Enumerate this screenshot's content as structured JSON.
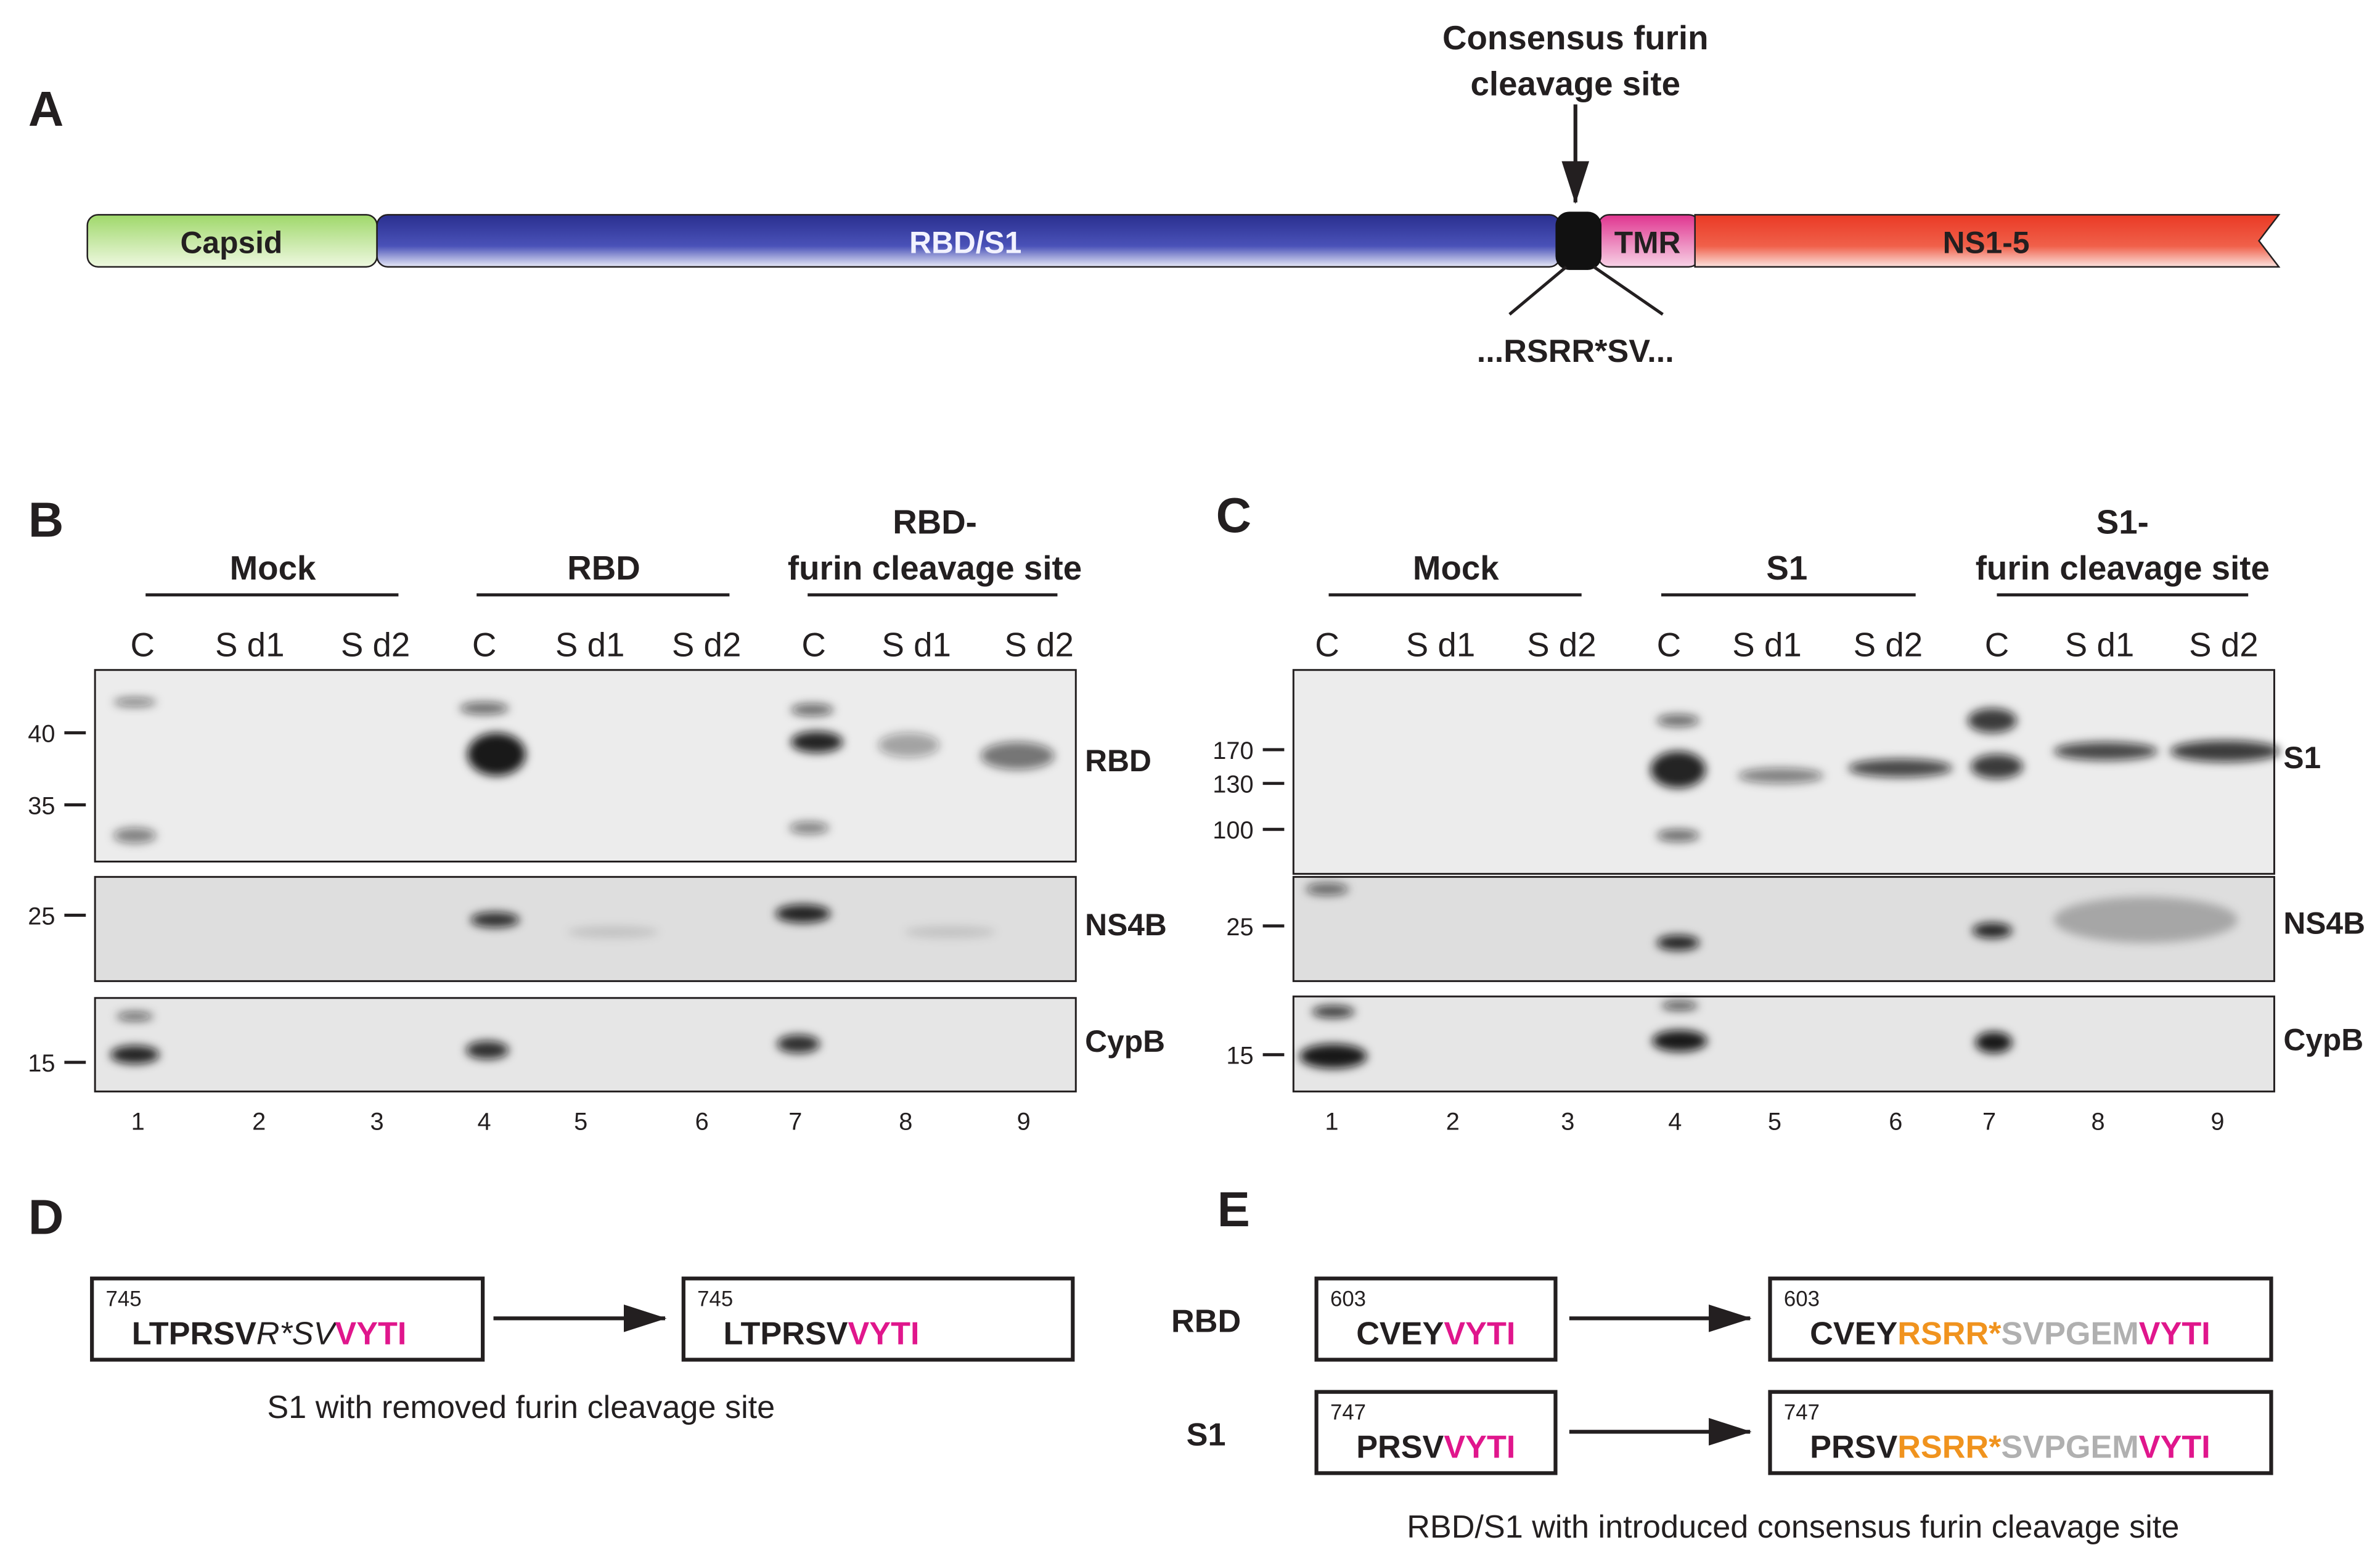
{
  "panel_labels": [
    "A",
    "B",
    "C",
    "D",
    "E"
  ],
  "panel_a": {
    "annotation": [
      "Consensus furin",
      "cleavage site"
    ],
    "domains": [
      "Capsid",
      "RBD/S1",
      "TMR",
      "NS1-5"
    ],
    "sequence": "...RSRR*SV..."
  },
  "panel_b": {
    "groups": [
      [
        "Mock"
      ],
      [
        "RBD"
      ],
      [
        "RBD-",
        "furin cleavage site"
      ]
    ],
    "lanes": [
      "C",
      "S d1",
      "S d2",
      "C",
      "S d1",
      "S d2",
      "C",
      "S d1",
      "S d2"
    ],
    "markers": [
      "40",
      "35",
      "25",
      "15"
    ],
    "blots": [
      "RBD",
      "NS4B",
      "CypB"
    ],
    "lane_numbers": [
      "1",
      "2",
      "3",
      "4",
      "5",
      "6",
      "7",
      "8",
      "9"
    ]
  },
  "panel_c": {
    "groups": [
      [
        "Mock"
      ],
      [
        "S1"
      ],
      [
        "S1-",
        "furin cleavage site"
      ]
    ],
    "lanes": [
      "C",
      "S d1",
      "S d2",
      "C",
      "S d1",
      "S d2",
      "C",
      "S d1",
      "S d2"
    ],
    "markers": [
      "170",
      "130",
      "100",
      "25",
      "15"
    ],
    "blots": [
      "S1",
      "NS4B",
      "CypB"
    ],
    "lane_numbers": [
      "1",
      "2",
      "3",
      "4",
      "5",
      "6",
      "7",
      "8",
      "9"
    ]
  },
  "panel_d": {
    "left": {
      "position": "745",
      "segments": [
        "LTPRSV",
        "R*SV",
        "VYTI"
      ]
    },
    "right": {
      "position": "745",
      "segments": [
        "LTPRSV",
        "VYTI"
      ]
    },
    "caption": "S1 with removed furin cleavage site"
  },
  "panel_e": {
    "rows": [
      {
        "label": "RBD",
        "left": {
          "position": "603",
          "segments": [
            "CVEY",
            "VYTI"
          ]
        },
        "right": {
          "position": "603",
          "segments": [
            "CVEY",
            "RSRR*",
            "SVPGEM",
            "VYTI"
          ]
        }
      },
      {
        "label": "S1",
        "left": {
          "position": "747",
          "segments": [
            "PRSV",
            "VYTI"
          ]
        },
        "right": {
          "position": "747",
          "segments": [
            "PRSV",
            "RSRR*",
            "SVPGEM",
            "VYTI"
          ]
        }
      }
    ],
    "caption": "RBD/S1 with introduced consensus furin cleavage site"
  }
}
